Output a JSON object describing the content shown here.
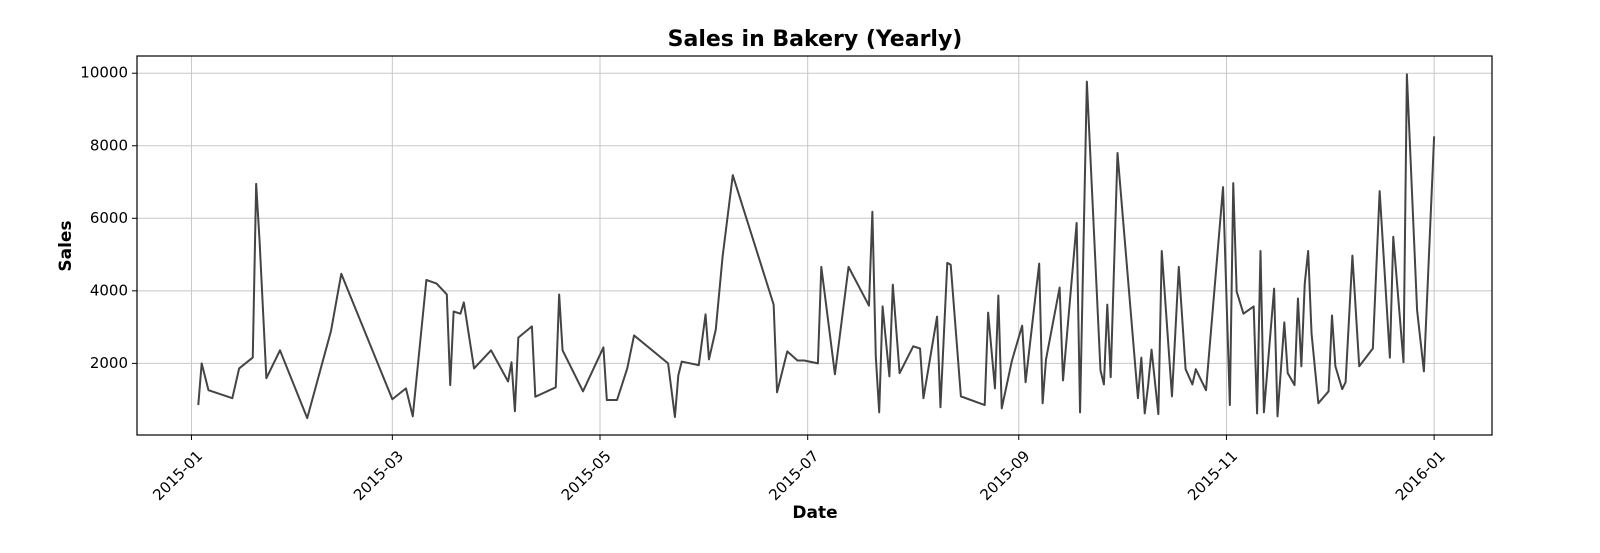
{
  "chart_data": {
    "type": "line",
    "title": "Sales in Bakery (Yearly)",
    "xlabel": "Date",
    "ylabel": "Sales",
    "x": [
      2,
      3,
      5,
      12,
      14,
      18,
      19,
      20,
      22,
      26,
      34,
      41,
      44,
      59,
      63,
      65,
      69,
      72,
      75,
      76,
      77,
      79,
      80,
      83,
      88,
      93,
      94,
      95,
      96,
      100,
      101,
      107,
      108,
      109,
      115,
      121,
      122,
      125,
      128,
      130,
      140,
      142,
      143,
      144,
      149,
      151,
      152,
      154,
      156,
      159,
      171,
      172,
      175,
      178,
      180,
      184,
      185,
      189,
      192,
      193,
      199,
      200,
      201,
      202,
      203,
      205,
      206,
      208,
      212,
      214,
      215,
      219,
      220,
      222,
      223,
      226,
      233,
      234,
      236,
      237,
      238,
      241,
      244,
      245,
      249,
      250,
      251,
      255,
      256,
      260,
      261,
      263,
      267,
      268,
      269,
      270,
      272,
      278,
      279,
      280,
      281,
      282,
      284,
      285,
      288,
      290,
      292,
      294,
      295,
      298,
      303,
      305,
      306,
      307,
      309,
      312,
      313,
      314,
      315,
      318,
      319,
      321,
      322,
      324,
      325,
      326,
      327,
      328,
      329,
      331,
      334,
      335,
      336,
      338,
      339,
      341,
      343,
      347,
      349,
      352,
      353,
      356,
      357,
      360,
      362,
      365
    ],
    "series": [
      {
        "name": "Sales",
        "color": "#444444",
        "values": [
          850,
          2000,
          1260,
          1040,
          1860,
          2160,
          6950,
          5380,
          1590,
          2360,
          490,
          2900,
          4470,
          1010,
          1310,
          540,
          4300,
          4200,
          3900,
          1400,
          3430,
          3370,
          3680,
          1860,
          2360,
          1500,
          2030,
          680,
          2710,
          3020,
          1080,
          1340,
          3900,
          2360,
          1230,
          2440,
          990,
          990,
          1860,
          2770,
          2000,
          520,
          1670,
          2050,
          1950,
          3350,
          2110,
          2930,
          4940,
          7190,
          3620,
          1200,
          2330,
          2080,
          2080,
          2000,
          4660,
          1700,
          3920,
          4660,
          3590,
          6180,
          2190,
          650,
          3570,
          1640,
          4170,
          1730,
          2470,
          2410,
          1040,
          3290,
          790,
          4770,
          4720,
          1090,
          850,
          3400,
          1310,
          3870,
          760,
          2080,
          3040,
          1480,
          4750,
          900,
          2110,
          4090,
          1530,
          5870,
          650,
          9770,
          1810,
          1420,
          3620,
          1620,
          7800,
          1040,
          2160,
          620,
          1400,
          2380,
          600,
          5100,
          1090,
          4660,
          1840,
          1420,
          1840,
          1260,
          6860,
          850,
          6970,
          3980,
          3370,
          3570,
          620,
          5100,
          650,
          4060,
          540,
          3130,
          1730,
          1400,
          3790,
          1920,
          4200,
          5100,
          2820,
          900,
          1230,
          3320,
          1920,
          1290,
          1480,
          4970,
          1920,
          2410,
          6750,
          2160,
          5490,
          2030,
          9970,
          3460,
          1780,
          8260
        ]
      }
    ],
    "xlim": [
      -16,
      382
    ],
    "ylim": [
      25,
      10475
    ],
    "xticks": [
      {
        "value": 0,
        "label": "2015-01"
      },
      {
        "value": 59,
        "label": "2015-03"
      },
      {
        "value": 120,
        "label": "2015-05"
      },
      {
        "value": 181,
        "label": "2015-07"
      },
      {
        "value": 243,
        "label": "2015-09"
      },
      {
        "value": 304,
        "label": "2015-11"
      },
      {
        "value": 365,
        "label": "2016-01"
      }
    ],
    "yticks": [
      2000,
      4000,
      6000,
      8000,
      10000
    ],
    "grid": true
  }
}
